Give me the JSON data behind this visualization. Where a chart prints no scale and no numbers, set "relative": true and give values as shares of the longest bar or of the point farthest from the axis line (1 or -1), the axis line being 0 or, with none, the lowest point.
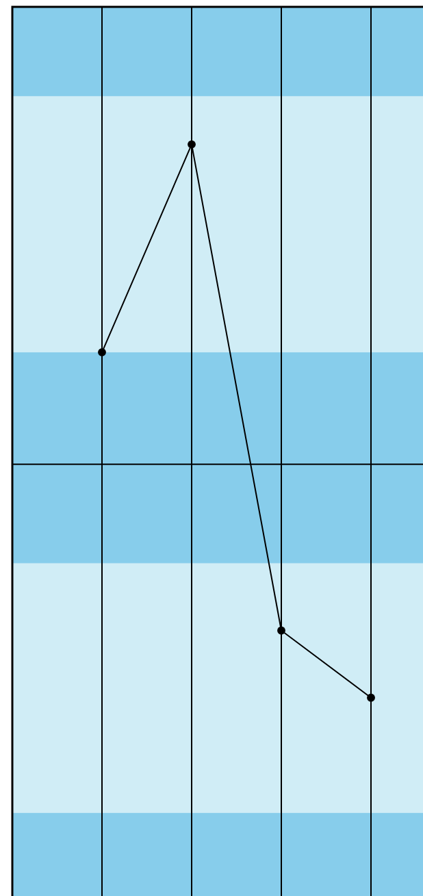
{
  "chart_data": {
    "type": "line",
    "relative": true,
    "categories": [
      null,
      null,
      null,
      null
    ],
    "series": [
      {
        "color": "#000000",
        "values": [
          0.35,
          1,
          -0.52,
          -0.73
        ]
      }
    ],
    "marker": "circle",
    "line_style": "solid",
    "grid": "x",
    "bands": [
      {
        "axis": "y",
        "from": 1.15,
        "to": 1.43,
        "color": "#87cdeb"
      },
      {
        "axis": "y",
        "from": 0.35,
        "to": 1.15,
        "color": "#d0edf6"
      },
      {
        "axis": "y",
        "from": -0.31,
        "to": 0.35,
        "color": "#87cdeb"
      },
      {
        "axis": "y",
        "from": -1.09,
        "to": -0.31,
        "color": "#d0edf6"
      },
      {
        "axis": "y",
        "from": -1.35,
        "to": -1.09,
        "color": "#87cdeb"
      }
    ]
  }
}
